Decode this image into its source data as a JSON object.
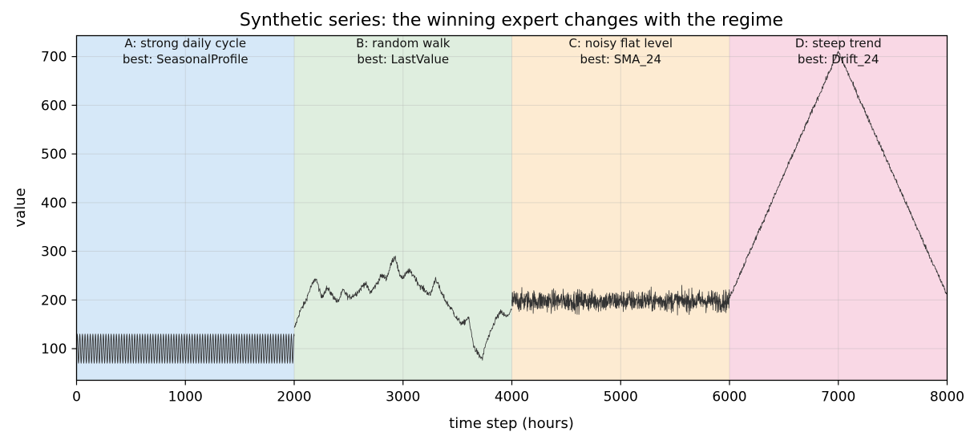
{
  "chart_data": {
    "type": "line",
    "title": "Synthetic series: the winning expert changes with the regime",
    "xlabel": "time step (hours)",
    "ylabel": "value",
    "xlim": [
      0,
      8000
    ],
    "ylim": [
      35,
      743
    ],
    "xticks": [
      0,
      1000,
      2000,
      3000,
      4000,
      5000,
      6000,
      7000,
      8000
    ],
    "yticks": [
      100,
      200,
      300,
      400,
      500,
      600,
      700
    ],
    "grid": true,
    "line_color": "#333333",
    "regions": [
      {
        "x_start": 0,
        "x_end": 2000,
        "color": "#d6e8f8",
        "line1": "A: strong daily cycle",
        "line2": "best: SeasonalProfile"
      },
      {
        "x_start": 2000,
        "x_end": 4000,
        "color": "#dfeedf",
        "line1": "B: random walk",
        "line2": "best: LastValue"
      },
      {
        "x_start": 4000,
        "x_end": 6000,
        "color": "#fdebd2",
        "line1": "C: noisy flat level",
        "line2": "best: SMA_24"
      },
      {
        "x_start": 6000,
        "x_end": 8000,
        "color": "#f9d8e5",
        "line1": "D: steep trend",
        "line2": "best: Drift_24"
      }
    ],
    "series": [
      {
        "segment": "A",
        "kind": "sinusoid",
        "x_range": [
          0,
          2000
        ],
        "center": 100,
        "amplitude": 30,
        "period": 24
      },
      {
        "segment": "B",
        "kind": "random-walk",
        "x": [
          2000,
          2050,
          2100,
          2150,
          2200,
          2250,
          2300,
          2350,
          2400,
          2450,
          2500,
          2550,
          2600,
          2650,
          2700,
          2750,
          2800,
          2850,
          2900,
          2930,
          2960,
          3000,
          3050,
          3100,
          3150,
          3200,
          3250,
          3300,
          3350,
          3400,
          3450,
          3500,
          3550,
          3600,
          3650,
          3700,
          3730,
          3760,
          3800,
          3850,
          3900,
          3950,
          4000
        ],
        "y": [
          140,
          175,
          195,
          225,
          245,
          205,
          225,
          210,
          195,
          220,
          205,
          210,
          220,
          235,
          215,
          230,
          250,
          245,
          280,
          290,
          255,
          245,
          260,
          250,
          230,
          220,
          210,
          245,
          215,
          195,
          180,
          160,
          150,
          165,
          105,
          85,
          80,
          110,
          130,
          160,
          175,
          165,
          180
        ]
      },
      {
        "segment": "C",
        "kind": "noise",
        "x_range": [
          4000,
          6000
        ],
        "center": 198,
        "spread": 22
      },
      {
        "segment": "D",
        "kind": "trend",
        "x": [
          6000,
          7000,
          8000
        ],
        "y": [
          205,
          710,
          210
        ]
      }
    ]
  }
}
